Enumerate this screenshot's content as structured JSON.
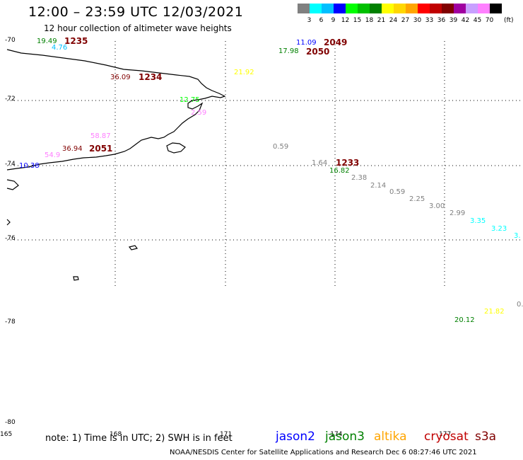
{
  "header": {
    "title": "12:00 – 23:59 UTC 12/03/2021",
    "subtitle": "12 hour collection of altimeter wave heights"
  },
  "scale_bar": {
    "unit": "(ft)",
    "bins": [
      {
        "label": "3",
        "color": "#808080"
      },
      {
        "label": "6",
        "color": "#00ffff"
      },
      {
        "label": "9",
        "color": "#00bfff"
      },
      {
        "label": "12",
        "color": "#0000ff"
      },
      {
        "label": "15",
        "color": "#00ff00"
      },
      {
        "label": "18",
        "color": "#00c000"
      },
      {
        "label": "21",
        "color": "#008000"
      },
      {
        "label": "24",
        "color": "#ffff00"
      },
      {
        "label": "27",
        "color": "#ffd700"
      },
      {
        "label": "30",
        "color": "#ffa500"
      },
      {
        "label": "33",
        "color": "#ff0000"
      },
      {
        "label": "36",
        "color": "#c00000"
      },
      {
        "label": "39",
        "color": "#800000"
      },
      {
        "label": "42",
        "color": "#a000a0"
      },
      {
        "label": "45",
        "color": "#c8a0ff"
      },
      {
        "label": "70",
        "color": "#ff80ff"
      },
      {
        "label": "",
        "color": "#000000"
      }
    ]
  },
  "axes": {
    "lat_labels": [
      "-70",
      "-72",
      "-74",
      "-76",
      "-78",
      "-80"
    ],
    "lon_labels": [
      "165",
      "168",
      "171",
      "-174",
      "177"
    ]
  },
  "observations": [
    {
      "value": "19.49",
      "color": "#008000"
    },
    {
      "value": "4.76",
      "color": "#00bfff"
    },
    {
      "value": "36.09",
      "color": "#800000"
    },
    {
      "value": "21.92",
      "color": "#ffff00"
    },
    {
      "value": "12.75",
      "color": "#00ff00"
    },
    {
      "value": "58.87",
      "color": "#ff80ff"
    },
    {
      "value": "54.9",
      "color": "#ff80ff"
    },
    {
      "value": "36.94",
      "color": "#800000"
    },
    {
      "value": "10.38",
      "color": "#0000ff"
    },
    {
      "value": "11.09",
      "color": "#0000ff"
    },
    {
      "value": "17.98",
      "color": "#008000"
    },
    {
      "value": "0.59",
      "color": "#808080"
    },
    {
      "value": "1.64",
      "color": "#808080"
    },
    {
      "value": "16.82",
      "color": "#008000"
    },
    {
      "value": "2.38",
      "color": "#808080"
    },
    {
      "value": "2.14",
      "color": "#808080"
    },
    {
      "value": "0.59",
      "color": "#808080"
    },
    {
      "value": "2.25",
      "color": "#808080"
    },
    {
      "value": "3.00",
      "color": "#808080"
    },
    {
      "value": "2.99",
      "color": "#808080"
    },
    {
      "value": "3.35",
      "color": "#00ffff"
    },
    {
      "value": "3.23",
      "color": "#00ffff"
    },
    {
      "value": "3.",
      "color": "#00ffff"
    },
    {
      "value": "21.82",
      "color": "#ffff00"
    },
    {
      "value": "20.12",
      "color": "#008000"
    },
    {
      "value": "0.",
      "color": "#808080"
    },
    {
      "value": "2.59",
      "color": "#ff80ff"
    }
  ],
  "passes": [
    {
      "label": "1235",
      "color": "#800000"
    },
    {
      "label": "2049",
      "color": "#800000"
    },
    {
      "label": "2050",
      "color": "#800000"
    },
    {
      "label": "1234",
      "color": "#800000"
    },
    {
      "label": "2051",
      "color": "#800000"
    },
    {
      "label": "1233",
      "color": "#800000"
    }
  ],
  "footer": {
    "note": "note: 1) Time is in UTC; 2) SWH is in feet",
    "satellites": [
      {
        "name": "jason2",
        "color": "#0000ff"
      },
      {
        "name": "jason3",
        "color": "#008000"
      },
      {
        "name": "altika",
        "color": "#ffa500"
      },
      {
        "name": "cryosat",
        "color": "#c00000"
      },
      {
        "name": "s3a",
        "color": "#800000"
      }
    ],
    "credit": "NOAA/NESDIS Center for Satellite Applications and Research    Dec  6 08:27:46 UTC 2021"
  }
}
